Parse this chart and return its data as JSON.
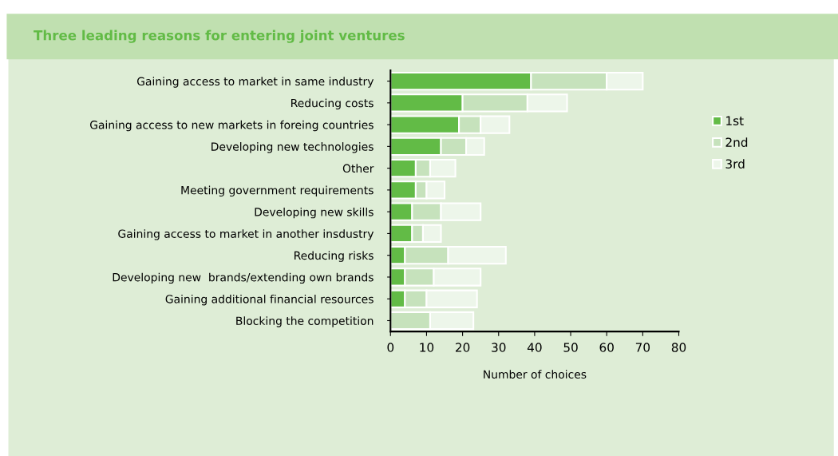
{
  "chart_data": {
    "type": "bar",
    "orientation": "horizontal",
    "stacked": true,
    "title": "Three leading reasons for entering joint ventures",
    "xlabel": "Number of choices",
    "categories": [
      "Gaining access to market in same industry",
      "Reducing costs",
      "Gaining access to new markets in foreing countries",
      "Developing new technologies",
      "Other",
      "Meeting government requirements",
      "Developing new skills",
      "Gaining access to market in another insdustry",
      "Reducing risks",
      "Developing new  brands/extending own brands",
      "Gaining additional financial resources",
      "Blocking the competition"
    ],
    "series": [
      {
        "name": "1st",
        "color": "#62bb46",
        "values": [
          39,
          20,
          19,
          14,
          7,
          7,
          6,
          6,
          4,
          4,
          4,
          0
        ]
      },
      {
        "name": "2nd",
        "color": "#c6e2bc",
        "values": [
          21,
          18,
          6,
          7,
          4,
          3,
          8,
          3,
          12,
          8,
          6,
          11
        ]
      },
      {
        "name": "3rd",
        "color": "#edf6ea",
        "values": [
          10,
          11,
          8,
          5,
          7,
          5,
          11,
          5,
          16,
          13,
          14,
          12
        ]
      }
    ],
    "xlim": [
      0,
      80
    ],
    "xticks": [
      0,
      10,
      20,
      30,
      40,
      50,
      60,
      70,
      80
    ],
    "grid": false,
    "legend": "right"
  }
}
